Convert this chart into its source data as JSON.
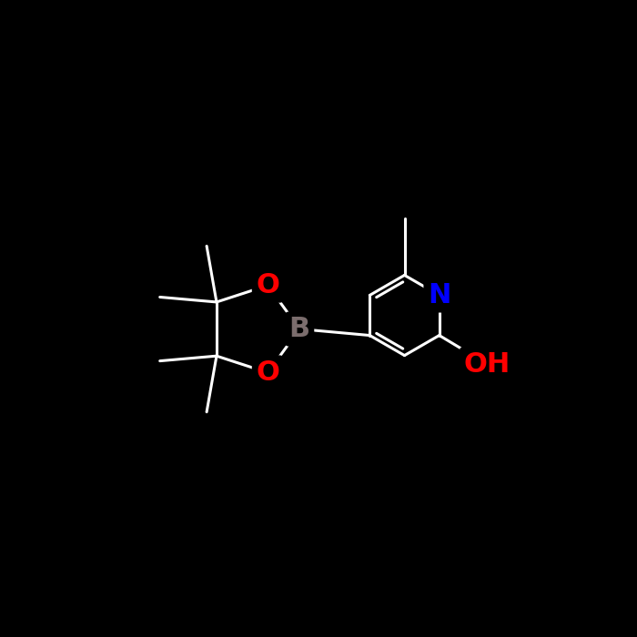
{
  "background_color": "#000000",
  "bond_color": "#ffffff",
  "atom_colors": {
    "B": "#7b6d6d",
    "O": "#ff0000",
    "N": "#0000ff",
    "C": "#ffffff",
    "H": "#ffffff"
  },
  "bond_width": 2.2,
  "font_size_atoms": 20,
  "figsize": [
    7.0,
    7.0
  ],
  "dpi": 100
}
